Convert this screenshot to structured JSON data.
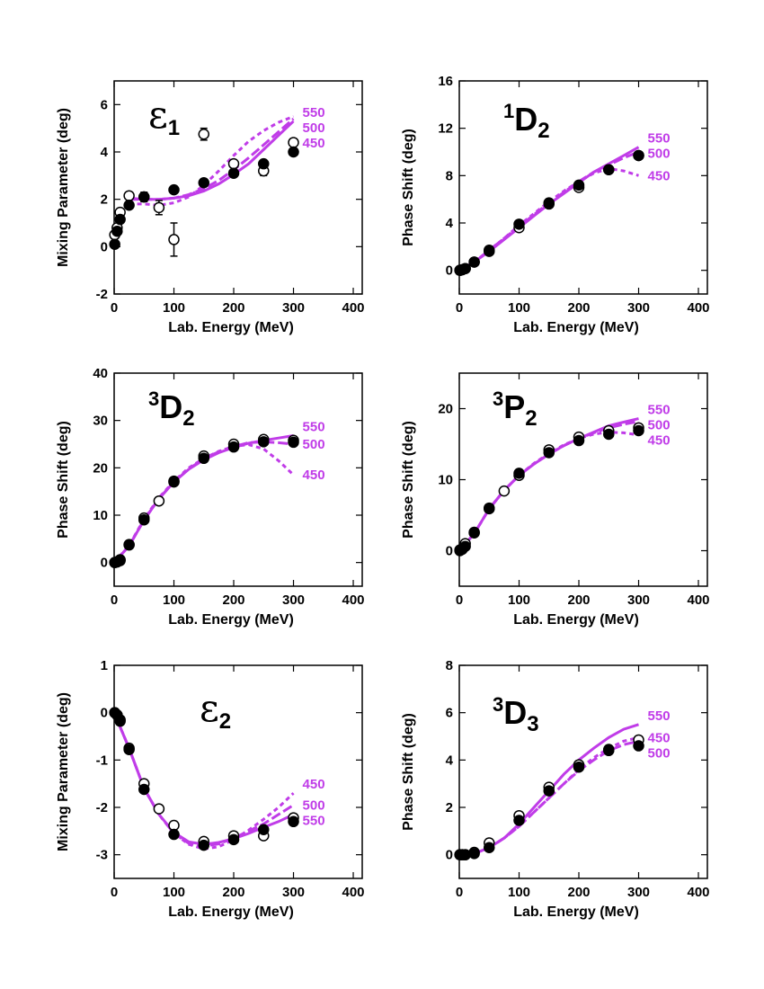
{
  "chart_data": [
    {
      "type": "line",
      "title": {
        "main": "ε",
        "sub": "1"
      },
      "xlabel": "Lab. Energy (MeV)",
      "ylabel": "Mixing Parameter (deg)",
      "xlim": [
        0,
        415
      ],
      "ylim": [
        -2,
        7
      ],
      "xticks": [
        0,
        100,
        200,
        300,
        400
      ],
      "yticks": [
        -2,
        0,
        2,
        4,
        6
      ],
      "series": [
        {
          "name": "550",
          "color": "#c03ce8",
          "style": "solid",
          "x": [
            25,
            50,
            75,
            100,
            125,
            150,
            175,
            200,
            225,
            250,
            275,
            300
          ],
          "values": [
            2.05,
            2.0,
            2.0,
            2.05,
            2.15,
            2.35,
            2.65,
            3.05,
            3.5,
            4.1,
            4.7,
            5.3
          ]
        },
        {
          "name": "500",
          "color": "#c03ce8",
          "style": "dashed",
          "x": [
            25,
            50,
            75,
            100,
            125,
            150,
            175,
            200,
            225,
            250,
            275,
            300
          ],
          "values": [
            2.0,
            2.0,
            2.0,
            2.05,
            2.2,
            2.45,
            2.8,
            3.25,
            3.75,
            4.3,
            4.85,
            5.4
          ]
        },
        {
          "name": "450",
          "color": "#c03ce8",
          "style": "dotted",
          "x": [
            25,
            50,
            75,
            100,
            125,
            150,
            175,
            200,
            225,
            250,
            275,
            300
          ],
          "values": [
            1.8,
            1.8,
            1.75,
            1.85,
            2.1,
            2.6,
            3.2,
            3.85,
            4.45,
            4.9,
            5.25,
            5.5
          ]
        }
      ],
      "points": [
        {
          "marker": "open",
          "x": [
            1,
            5,
            10,
            25,
            50,
            75,
            100,
            150,
            200,
            250,
            300
          ],
          "values": [
            0.5,
            0.8,
            1.45,
            2.15,
            2.1,
            1.65,
            0.3,
            4.75,
            3.5,
            3.2,
            4.4
          ],
          "errors": [
            0.05,
            0.05,
            0.05,
            0.1,
            0.2,
            0.3,
            0.7,
            0.25,
            0.1,
            0.2,
            0.1
          ]
        },
        {
          "marker": "filled",
          "x": [
            1,
            5,
            10,
            25,
            50,
            100,
            150,
            200,
            250,
            300
          ],
          "values": [
            0.1,
            0.65,
            1.15,
            1.75,
            2.1,
            2.4,
            2.7,
            3.1,
            3.5,
            4.0
          ]
        }
      ]
    },
    {
      "type": "line",
      "title": {
        "sup": "1",
        "main": "D",
        "sub": "2"
      },
      "xlabel": "Lab. Energy (MeV)",
      "ylabel": "Phase Shift (deg)",
      "xlim": [
        0,
        415
      ],
      "ylim": [
        -2,
        16
      ],
      "xticks": [
        0,
        100,
        200,
        300,
        400
      ],
      "yticks": [
        0,
        4,
        8,
        12,
        16
      ],
      "series": [
        {
          "name": "550",
          "color": "#c03ce8",
          "style": "solid",
          "x": [
            0,
            25,
            50,
            75,
            100,
            125,
            150,
            175,
            200,
            225,
            250,
            275,
            300
          ],
          "values": [
            0,
            0.7,
            1.6,
            2.6,
            3.6,
            4.6,
            5.6,
            6.5,
            7.4,
            8.3,
            9.0,
            9.7,
            10.4
          ]
        },
        {
          "name": "500",
          "color": "#c03ce8",
          "style": "dashed",
          "x": [
            0,
            25,
            50,
            75,
            100,
            125,
            150,
            175,
            200,
            225,
            250,
            275,
            300
          ],
          "values": [
            0,
            0.7,
            1.7,
            2.7,
            3.7,
            4.7,
            5.7,
            6.6,
            7.5,
            8.3,
            8.9,
            9.5,
            10.0
          ]
        },
        {
          "name": "450",
          "color": "#c03ce8",
          "style": "dotted",
          "x": [
            0,
            25,
            50,
            75,
            100,
            125,
            150,
            175,
            200,
            225,
            250,
            275,
            300
          ],
          "values": [
            0,
            0.7,
            1.7,
            2.7,
            3.8,
            4.8,
            5.8,
            6.7,
            7.5,
            8.2,
            8.6,
            8.4,
            8.0
          ]
        }
      ],
      "points": [
        {
          "marker": "open",
          "x": [
            1,
            5,
            10,
            25,
            50,
            100,
            150,
            200,
            250,
            300
          ],
          "values": [
            0,
            0.05,
            0.15,
            0.7,
            1.6,
            3.6,
            5.6,
            7.0,
            8.5,
            9.7
          ]
        },
        {
          "marker": "filled",
          "x": [
            1,
            5,
            10,
            25,
            50,
            100,
            150,
            200,
            250,
            300
          ],
          "values": [
            0,
            0.05,
            0.15,
            0.7,
            1.7,
            3.9,
            5.7,
            7.2,
            8.5,
            9.7
          ]
        }
      ]
    },
    {
      "type": "line",
      "title": {
        "sup": "3",
        "main": "D",
        "sub": "2"
      },
      "xlabel": "Lab. Energy (MeV)",
      "ylabel": "Phase Shift (deg)",
      "xlim": [
        0,
        415
      ],
      "ylim": [
        -5,
        40
      ],
      "xticks": [
        0,
        100,
        200,
        300,
        400
      ],
      "yticks": [
        0,
        10,
        20,
        30,
        40
      ],
      "series": [
        {
          "name": "550",
          "color": "#c03ce8",
          "style": "solid",
          "x": [
            0,
            25,
            50,
            75,
            100,
            125,
            150,
            175,
            200,
            225,
            250,
            275,
            300
          ],
          "values": [
            0,
            3.5,
            9,
            13.5,
            17,
            19.7,
            21.7,
            23.2,
            24.3,
            25.2,
            25.8,
            26.3,
            26.8
          ]
        },
        {
          "name": "500",
          "color": "#c03ce8",
          "style": "dashed",
          "x": [
            0,
            25,
            50,
            75,
            100,
            125,
            150,
            175,
            200,
            225,
            250,
            275,
            300
          ],
          "values": [
            0,
            3.5,
            9,
            13.5,
            17,
            19.8,
            21.9,
            23.4,
            24.5,
            25.3,
            25.5,
            25.3,
            25.0
          ]
        },
        {
          "name": "450",
          "color": "#c03ce8",
          "style": "dotted",
          "x": [
            0,
            25,
            50,
            75,
            100,
            125,
            150,
            175,
            200,
            225,
            250,
            275,
            300
          ],
          "values": [
            0,
            3.6,
            9.2,
            13.7,
            17.2,
            20,
            22,
            23.5,
            24.5,
            24.9,
            24,
            21.5,
            18.5
          ]
        }
      ],
      "points": [
        {
          "marker": "open",
          "x": [
            1,
            5,
            10,
            25,
            50,
            75,
            100,
            150,
            200,
            250,
            300
          ],
          "values": [
            0,
            0.2,
            0.6,
            3.8,
            9.4,
            13,
            17,
            22.5,
            25,
            26,
            25.8
          ]
        },
        {
          "marker": "filled",
          "x": [
            1,
            5,
            10,
            25,
            50,
            100,
            150,
            200,
            250,
            300
          ],
          "values": [
            0,
            0.1,
            0.4,
            3.7,
            9,
            17.2,
            22,
            24.4,
            25.5,
            25.4
          ]
        }
      ]
    },
    {
      "type": "line",
      "title": {
        "sup": "3",
        "main": "P",
        "sub": "2"
      },
      "xlabel": "Lab. Energy (MeV)",
      "ylabel": "Phase Shift (deg)",
      "xlim": [
        0,
        415
      ],
      "ylim": [
        -5,
        25
      ],
      "xticks": [
        0,
        100,
        200,
        300,
        400
      ],
      "yticks": [
        0,
        10,
        20
      ],
      "series": [
        {
          "name": "550",
          "color": "#c03ce8",
          "style": "solid",
          "x": [
            0,
            25,
            50,
            75,
            100,
            125,
            150,
            175,
            200,
            225,
            250,
            275,
            300
          ],
          "values": [
            0,
            2.4,
            5.9,
            8.5,
            10.6,
            12.2,
            13.6,
            14.8,
            15.8,
            16.7,
            17.6,
            18.1,
            18.6
          ]
        },
        {
          "name": "500",
          "color": "#c03ce8",
          "style": "dashed",
          "x": [
            0,
            25,
            50,
            75,
            100,
            125,
            150,
            175,
            200,
            225,
            250,
            275,
            300
          ],
          "values": [
            0,
            2.4,
            5.9,
            8.5,
            10.6,
            12.2,
            13.6,
            14.8,
            15.8,
            16.6,
            17.3,
            17.8,
            18.2
          ]
        },
        {
          "name": "450",
          "color": "#c03ce8",
          "style": "dotted",
          "x": [
            0,
            25,
            50,
            75,
            100,
            125,
            150,
            175,
            200,
            225,
            250,
            275,
            300
          ],
          "values": [
            0,
            2.4,
            5.9,
            8.5,
            10.6,
            12.3,
            13.7,
            14.9,
            15.8,
            16.4,
            16.7,
            16.6,
            16.3
          ]
        }
      ],
      "points": [
        {
          "marker": "open",
          "x": [
            1,
            5,
            10,
            25,
            50,
            75,
            100,
            150,
            200,
            250,
            300
          ],
          "values": [
            0.1,
            0.3,
            1,
            2.6,
            6.0,
            8.4,
            10.6,
            14.2,
            16,
            16.9,
            17.3
          ]
        },
        {
          "marker": "filled",
          "x": [
            1,
            5,
            10,
            25,
            50,
            100,
            150,
            200,
            250,
            300
          ],
          "values": [
            0,
            0.2,
            0.6,
            2.5,
            5.9,
            10.9,
            13.8,
            15.5,
            16.4,
            16.9
          ]
        }
      ]
    },
    {
      "type": "line",
      "title": {
        "main": "ε",
        "sub": "2"
      },
      "xlabel": "Lab. Energy (MeV)",
      "ylabel": "Mixing Parameter (deg)",
      "xlim": [
        0,
        415
      ],
      "ylim": [
        -3.5,
        1
      ],
      "xticks": [
        0,
        100,
        200,
        300,
        400
      ],
      "yticks": [
        -3,
        -2,
        -1,
        0,
        1
      ],
      "series": [
        {
          "name": "450",
          "color": "#c03ce8",
          "style": "dotted",
          "x": [
            0,
            25,
            50,
            75,
            100,
            125,
            150,
            175,
            200,
            225,
            250,
            275,
            300
          ],
          "values": [
            0,
            -0.75,
            -1.6,
            -2.15,
            -2.55,
            -2.78,
            -2.88,
            -2.83,
            -2.68,
            -2.48,
            -2.25,
            -2.0,
            -1.7
          ]
        },
        {
          "name": "500",
          "color": "#c03ce8",
          "style": "dashed",
          "x": [
            0,
            25,
            50,
            75,
            100,
            125,
            150,
            175,
            200,
            225,
            250,
            275,
            300
          ],
          "values": [
            0,
            -0.75,
            -1.6,
            -2.15,
            -2.55,
            -2.76,
            -2.82,
            -2.77,
            -2.65,
            -2.5,
            -2.35,
            -2.15,
            -1.95
          ]
        },
        {
          "name": "550",
          "color": "#c03ce8",
          "style": "solid",
          "x": [
            0,
            25,
            50,
            75,
            100,
            125,
            150,
            175,
            200,
            225,
            250,
            275,
            300
          ],
          "values": [
            0,
            -0.75,
            -1.6,
            -2.15,
            -2.53,
            -2.73,
            -2.78,
            -2.74,
            -2.66,
            -2.55,
            -2.42,
            -2.3,
            -2.15
          ]
        }
      ],
      "points": [
        {
          "marker": "open",
          "x": [
            1,
            5,
            10,
            25,
            50,
            75,
            100,
            150,
            200,
            250,
            300
          ],
          "values": [
            0,
            -0.05,
            -0.15,
            -0.75,
            -1.5,
            -2.03,
            -2.38,
            -2.72,
            -2.6,
            -2.6,
            -2.22
          ]
        },
        {
          "marker": "filled",
          "x": [
            1,
            5,
            10,
            25,
            50,
            100,
            150,
            200,
            250,
            300
          ],
          "values": [
            0,
            -0.05,
            -0.18,
            -0.78,
            -1.62,
            -2.57,
            -2.8,
            -2.68,
            -2.47,
            -2.3
          ]
        }
      ]
    },
    {
      "type": "line",
      "title": {
        "sup": "3",
        "main": "D",
        "sub": "3"
      },
      "xlabel": "Lab. Energy (MeV)",
      "ylabel": "Phase Shift (deg)",
      "xlim": [
        0,
        415
      ],
      "ylim": [
        -1,
        8
      ],
      "xticks": [
        0,
        100,
        200,
        300,
        400
      ],
      "yticks": [
        0,
        2,
        4,
        6,
        8
      ],
      "series": [
        {
          "name": "550",
          "color": "#c03ce8",
          "style": "solid",
          "x": [
            0,
            25,
            50,
            75,
            100,
            125,
            150,
            175,
            200,
            225,
            250,
            275,
            300
          ],
          "values": [
            0,
            0.05,
            0.3,
            0.7,
            1.3,
            2.0,
            2.7,
            3.4,
            4.0,
            4.5,
            4.95,
            5.3,
            5.5
          ]
        },
        {
          "name": "450",
          "color": "#c03ce8",
          "style": "dotted",
          "x": [
            0,
            25,
            50,
            75,
            100,
            125,
            150,
            175,
            200,
            225,
            250,
            275,
            300
          ],
          "values": [
            0,
            0.05,
            0.3,
            0.7,
            1.2,
            1.8,
            2.4,
            3.0,
            3.6,
            4.1,
            4.5,
            4.8,
            4.95
          ]
        },
        {
          "name": "500",
          "color": "#c03ce8",
          "style": "dashed",
          "x": [
            0,
            25,
            50,
            75,
            100,
            125,
            150,
            175,
            200,
            225,
            250,
            275,
            300
          ],
          "values": [
            0,
            0.05,
            0.3,
            0.7,
            1.2,
            1.8,
            2.4,
            3.0,
            3.55,
            4.0,
            4.4,
            4.65,
            4.8
          ]
        }
      ],
      "points": [
        {
          "marker": "open",
          "x": [
            1,
            5,
            10,
            25,
            50,
            100,
            150,
            200,
            250,
            300
          ],
          "values": [
            0,
            0,
            0,
            0.1,
            0.5,
            1.65,
            2.85,
            3.8,
            4.45,
            4.85
          ]
        },
        {
          "marker": "filled",
          "x": [
            1,
            5,
            10,
            25,
            50,
            100,
            150,
            200,
            250,
            300
          ],
          "values": [
            0,
            0,
            0,
            0.05,
            0.3,
            1.45,
            2.7,
            3.7,
            4.4,
            4.6
          ]
        }
      ]
    }
  ]
}
